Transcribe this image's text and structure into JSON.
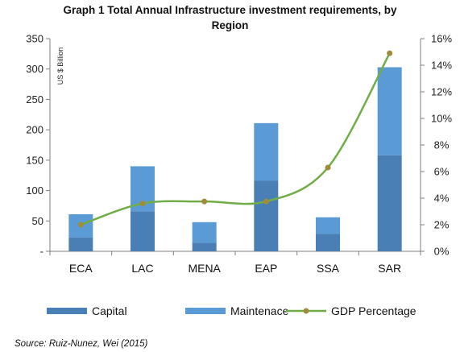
{
  "chart_data": {
    "type": "bar",
    "title_line1": "Graph 1 Total Annual Infrastructure investment requirements, by",
    "title_line2": "Region",
    "ylabel": "US $ Billion",
    "categories": [
      "ECA",
      "LAC",
      "MENA",
      "EAP",
      "SSA",
      "SAR"
    ],
    "stacked": true,
    "ylim": [
      0,
      350
    ],
    "yticks": [
      0,
      50,
      100,
      150,
      200,
      250,
      300,
      350
    ],
    "ytick_labels": [
      "-",
      "50",
      "100",
      "150",
      "200",
      "250",
      "300",
      "350"
    ],
    "y2lim": [
      0,
      16
    ],
    "y2ticks": [
      0,
      2,
      4,
      6,
      8,
      10,
      12,
      14,
      16
    ],
    "y2tick_labels": [
      "0%",
      "2%",
      "4%",
      "6%",
      "8%",
      "10%",
      "12%",
      "14%",
      "16%"
    ],
    "series": [
      {
        "name": "Capital",
        "values": [
          23,
          66,
          14,
          116,
          29,
          158
        ],
        "color": "#4a7fb5"
      },
      {
        "name": "Maintenace",
        "values": [
          38,
          74,
          34,
          95,
          27,
          145
        ],
        "color": "#5b9bd5"
      },
      {
        "name": "GDP Percentage",
        "axis": "secondary",
        "values": [
          2.0,
          3.6,
          3.75,
          3.75,
          6.3,
          14.9
        ],
        "color": "#70ad47",
        "marker_color": "#a08b3a",
        "smooth": true
      }
    ],
    "legend_position": "bottom",
    "grid": false
  },
  "source": "Source: Ruiz-Nunez, Wei (2015)"
}
